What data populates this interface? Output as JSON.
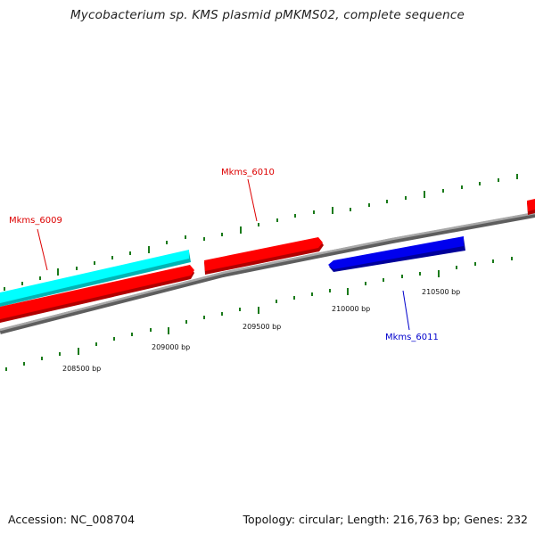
{
  "title": "Mycobacterium sp. KMS plasmid pMKMS02, complete sequence",
  "footer": {
    "accession": "Accession: NC_008704",
    "summary": "Topology: circular; Length: 216,763 bp; Genes: 232"
  },
  "colors": {
    "background": "#ffffff",
    "backbone": "#8a8a8a",
    "tick": "#1a7a1a",
    "forward_gene": "#ff0000",
    "reverse_gene": "#0000ee",
    "rna_gene": "#00ffff",
    "forward_label": "#dd0000",
    "reverse_label": "#0000cc"
  },
  "ticks": {
    "labels": [
      "208500 bp",
      "209000 bp",
      "209500 bp",
      "210000 bp",
      "210500 bp"
    ]
  },
  "genes": [
    {
      "name": "Mkms_6009",
      "strand": "forward",
      "labeled": true
    },
    {
      "name": "Mkms_6010",
      "strand": "forward",
      "labeled": true
    },
    {
      "name": "Mkms_6011",
      "strand": "reverse",
      "labeled": true
    }
  ]
}
